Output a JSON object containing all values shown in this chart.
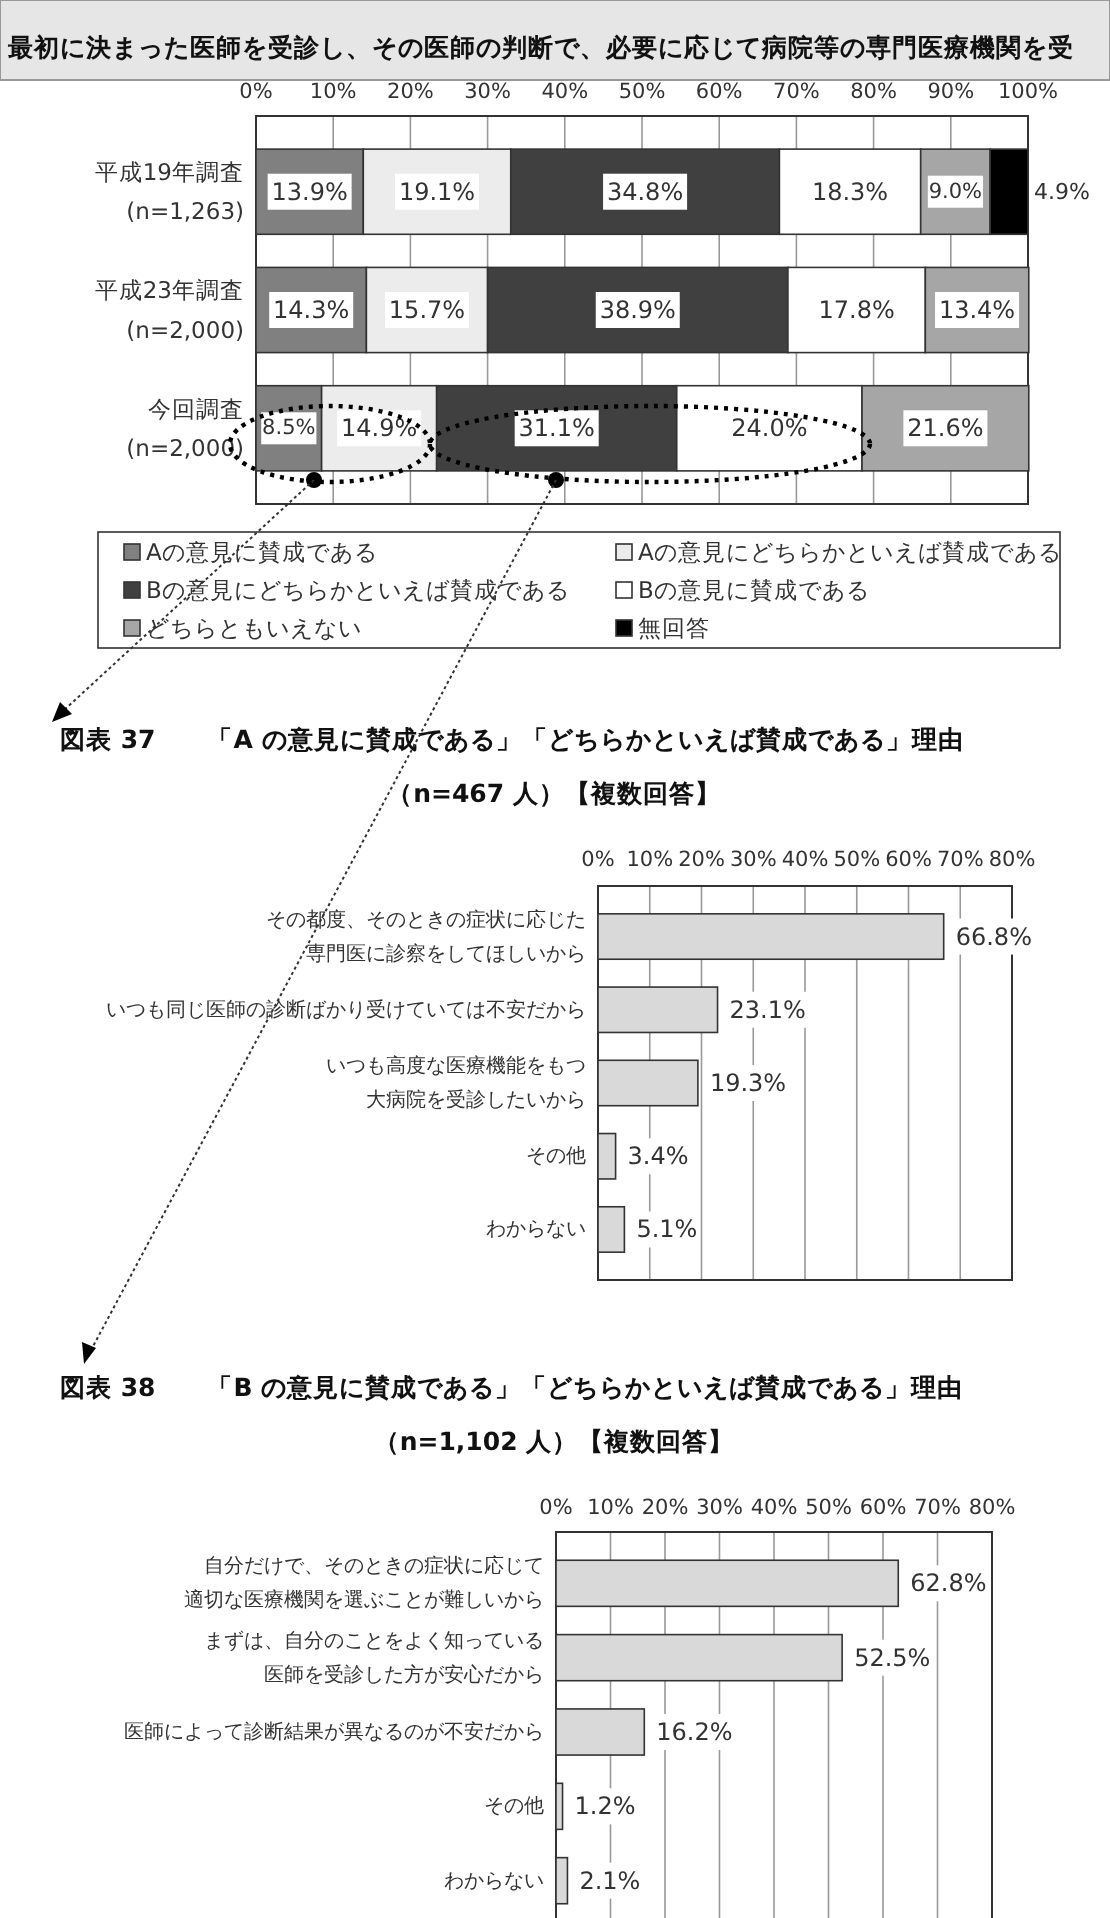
{
  "chart_data": [
    {
      "type": "bar",
      "orientation": "horizontal",
      "stacked": true,
      "title": "最初に決まった医師を受診し、その医師の判断で、必要に応じて病院等の専門医療機関を受",
      "categories": [
        "平成19年調査\n(n=1,263)",
        "平成23年調査\n(n=2,000)",
        "今回調査\n(n=2,000)"
      ],
      "series": [
        {
          "name": "Aの意見に賛成である",
          "color": "#808080",
          "values": [
            13.9,
            14.3,
            8.5
          ],
          "value_labels": [
            "13.9%",
            "14.3%",
            "8.5%"
          ]
        },
        {
          "name": "Aの意見にどちらかといえば賛成である",
          "color": "#ececec",
          "values": [
            19.1,
            15.7,
            14.9
          ],
          "value_labels": [
            "19.1%",
            "15.7%",
            "14.9%"
          ]
        },
        {
          "name": "Bの意見にどちらかといえば賛成である",
          "color": "#404040",
          "values": [
            34.8,
            38.9,
            31.1
          ],
          "value_labels": [
            "34.8%",
            "38.9%",
            "31.1%"
          ]
        },
        {
          "name": "Bの意見に賛成である",
          "color": "#ffffff",
          "values": [
            18.3,
            17.8,
            24.0
          ],
          "value_labels": [
            "18.3%",
            "17.8%",
            "24.0%"
          ]
        },
        {
          "name": "どちらともいえない",
          "color": "#a6a6a6",
          "values": [
            9.0,
            13.4,
            21.6
          ],
          "value_labels": [
            "9.0%",
            "13.4%",
            "21.6%"
          ]
        },
        {
          "name": "無回答",
          "color": "#000000",
          "values": [
            4.9,
            null,
            null
          ],
          "value_labels": [
            "4.9%",
            null,
            null
          ]
        }
      ],
      "xlim": [
        0,
        100
      ],
      "xticks": [
        {
          "value": 0,
          "label": "0%"
        },
        {
          "value": 10,
          "label": "10%"
        },
        {
          "value": 20,
          "label": "20%"
        },
        {
          "value": 30,
          "label": "30%"
        },
        {
          "value": 40,
          "label": "40%"
        },
        {
          "value": 50,
          "label": "50%"
        },
        {
          "value": 60,
          "label": "60%"
        },
        {
          "value": 70,
          "label": "70%"
        },
        {
          "value": 80,
          "label": "80%"
        },
        {
          "value": 90,
          "label": "90%"
        },
        {
          "value": 100,
          "label": "100%"
        }
      ],
      "grid": "x",
      "legend": "bottom"
    },
    {
      "type": "bar",
      "orientation": "horizontal",
      "title": "図表 37　　「A の意見に賛成である」「どちらかといえば賛成である」理由",
      "subtitle": "（n=467 人）【複数回答】",
      "categories": [
        "その都度、そのときの症状に応じた専門医に診察をしてほしいから",
        "いつも同じ医師の診断ばかり受けていては不安だから",
        "いつも高度な医療機能をもつ大病院を受診したいから",
        "その他",
        "わからない"
      ],
      "color": "#d9d9d9",
      "values": [
        66.8,
        23.1,
        19.3,
        3.4,
        5.1
      ],
      "value_labels": [
        "66.8%",
        "23.1%",
        "19.3%",
        "3.4%",
        "5.1%"
      ],
      "xlim": [
        0,
        80
      ],
      "xticks": [
        {
          "value": 0,
          "label": "0%"
        },
        {
          "value": 10,
          "label": "10%"
        },
        {
          "value": 20,
          "label": "20%"
        },
        {
          "value": 30,
          "label": "30%"
        },
        {
          "value": 40,
          "label": "40%"
        },
        {
          "value": 50,
          "label": "50%"
        },
        {
          "value": 60,
          "label": "60%"
        },
        {
          "value": 70,
          "label": "70%"
        },
        {
          "value": 80,
          "label": "80%"
        }
      ],
      "grid": "x"
    },
    {
      "type": "bar",
      "orientation": "horizontal",
      "title": "図表 38　　「B の意見に賛成である」「どちらかといえば賛成である」理由",
      "subtitle": "（n=1,102 人）【複数回答】",
      "categories": [
        "自分だけで、そのときの症状に応じて適切な医療機関を選ぶことが難しいから",
        "まずは、自分のことをよく知っている医師を受診した方が安心だから",
        "医師によって診断結果が異なるのが不安だから",
        "その他",
        "わからない"
      ],
      "color": "#d9d9d9",
      "values": [
        62.8,
        52.5,
        16.2,
        1.2,
        2.1
      ],
      "value_labels": [
        "62.8%",
        "52.5%",
        "16.2%",
        "1.2%",
        "2.1%"
      ],
      "xlim": [
        0,
        80
      ],
      "xticks": [
        {
          "value": 0,
          "label": "0%"
        },
        {
          "value": 10,
          "label": "10%"
        },
        {
          "value": 20,
          "label": "20%"
        },
        {
          "value": 30,
          "label": "30%"
        },
        {
          "value": 40,
          "label": "40%"
        },
        {
          "value": 50,
          "label": "50%"
        },
        {
          "value": 60,
          "label": "60%"
        },
        {
          "value": 70,
          "label": "70%"
        },
        {
          "value": 80,
          "label": "80%"
        }
      ],
      "grid": "x"
    }
  ]
}
